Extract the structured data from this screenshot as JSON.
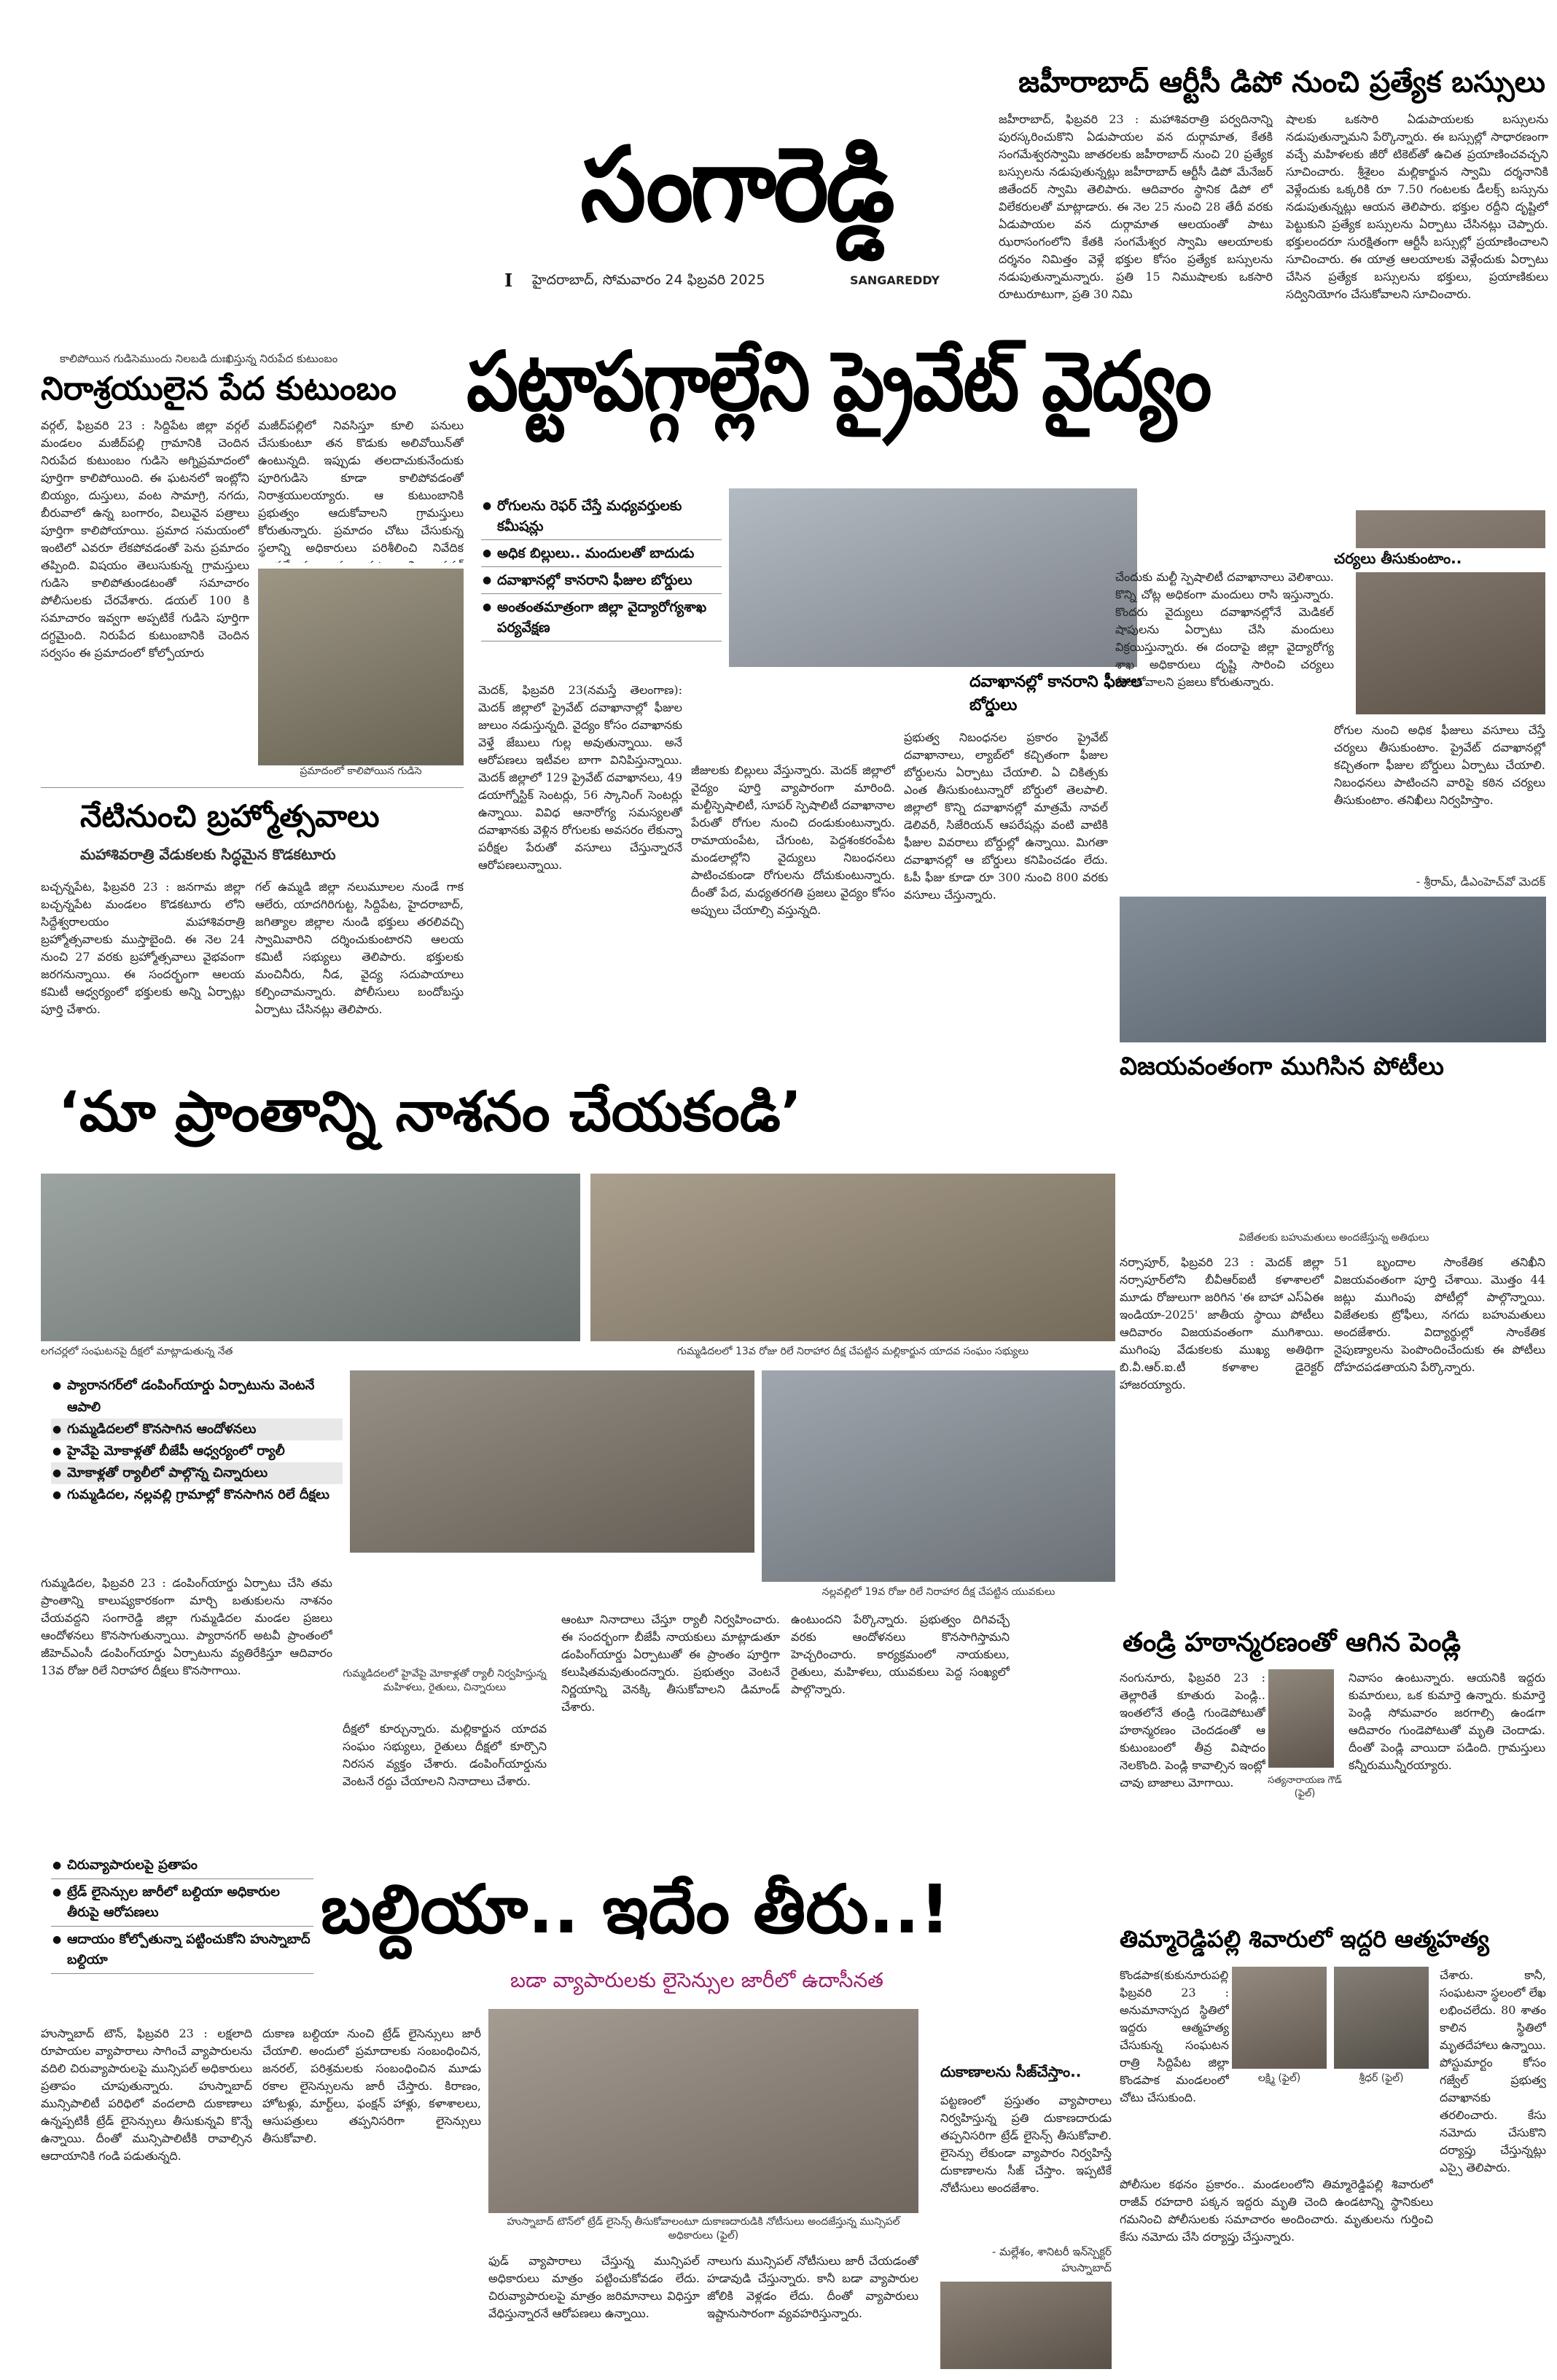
{
  "masthead": {
    "city_name": "సంగారెడ్డి",
    "page_marker": "I",
    "dateline": "హైదరాబాద్, సోమవారం 24 ఫిబ్రవరి 2025",
    "city_english": "SANGAREDDY"
  },
  "story_buses": {
    "headline": "జహీరాబాద్ ఆర్టీసీ డిపో నుంచి ప్రత్యేక బస్సులు",
    "col1": "జహీరాబాద్, ఫిబ్రవరి 23 : మహాశివరాత్రి పర్వదినాన్ని పురస్కరించుకొని ఏడుపాయల వన దుర్గామాత, కేతకి సంగమేశ్వరస్వామి జాతరలకు జహీరాబాద్ నుంచి 20 ప్రత్యేక బస్సులను నడుపుతున్నట్లు జహీరాబాద్ ఆర్టీసీ డిపో మేనేజర్ జితేందర్ స్వామి తెలిపారు. ఆదివారం స్థానిక డిపో లో విలేకరులతో మాట్లాడారు. ఈ నెల 25 నుంచి 28 తేదీ వరకు ఏడుపాయల వన దుర్గామాత ఆలయంతో పాటు ఝరాసంగంలోని కేతకి సంగమేశ్వర స్వామి ఆలయాలకు దర్శనం నిమిత్తం వెళ్లే భక్తుల కోసం ప్రత్యేక బస్సులను నడుపుతున్నామన్నారు. ప్రతి 15 నిముషాలకు ఒకసారి రూటురూటుగా, ప్రతి 30 నిమి",
    "col2": "షాలకు ఒకసారి ఏడుపాయలకు బస్సులను నడుపుతున్నామని పేర్కొన్నారు. ఈ బస్సుల్లో సాధారణంగా వచ్చే మహిళలకు జీరో టికెట్‌తో ఉచిత ప్రయాణించవచ్చని సూచించారు. శ్రీశైలం మల్లికార్జున స్వామి దర్శనానికి వెళ్లేందుకు ఒక్కరికి రూ 7.50 గంటలకు డీలక్స్ బస్సును నడుపుతున్నట్లు ఆయన తెలిపారు. భక్తుల రద్దీని దృష్టిలో పెట్టుకుని ప్రత్యేక బస్సులను ఏర్పాటు చేసినట్లు చెప్పారు. భక్తులందరూ సురక్షితంగా ఆర్టీసీ బస్సుల్లో ప్రయాణించాలని సూచించారు. ఈ యాత్ర ఆలయాలకు వెళ్లేందుకు ఏర్పాటు చేసిన ప్రత్యేక బస్సులను భక్తులు, ప్రయాణికులు సద్వినియోగం చేసుకోవాలని సూచించారు."
  },
  "story_family": {
    "kicker": "కాలిపోయిన గుడిసెముందు నిలబడి దుఃఖిస్తున్న నిరుపేద కుటుంబం",
    "headline": "నిరాశ్రయులైన పేద కుటుంబం",
    "col1": "వర్గల్, ఫిబ్రవరి 23 : సిద్దిపేట జిల్లా వర్గల్ మండలం మజీద్‌పల్లి గ్రామానికి చెందిన నిరుపేద కుటుంబం గుడిసె అగ్నిప్రమాదంలో పూర్తిగా కాలిపోయింది. ఈ ఘటనలో ఇంట్లోని బియ్యం, దుస్తులు, వంట సామాగ్రి, నగదు, బీరువాలో ఉన్న బంగారం, విలువైన పత్రాలు పూర్తిగా కాలిపోయాయి. ప్రమాద సమయంలో ఇంటిలో ఎవరూ లేకపోవడంతో పెను ప్రమాదం తప్పింది. విషయం తెలుసుకున్న గ్రామస్తులు గుడిసె కాలిపోతుండటంతో సమాచారం పోలీసులకు చేరవేశారు. డయల్ 100 కి సమాచారం ఇవ్వగా అప్పటికే గుడిసె పూర్తిగా దగ్ధమైంది. నిరుపేద కుటుంబానికి చెందిన సర్వసం ఈ ప్రమాదంలో కోల్పోయారు",
    "col2": "మజీద్‌పల్లిలో నివసిస్తూ కూలి పనులు చేసుకుంటూ తన కొడుకు అలివోయిన్‌తో ఉంటున్నది. ఇప్పుడు తలదాచుకునేందుకు పూరిగుడిసె కూడా కాలిపోవడంతో నిరాశ్రయులయ్యారు. ఆ కుటుంబానికి ప్రభుత్వం ఆదుకోవాలని గ్రామస్తులు కోరుతున్నారు. ప్రమాదం చోటు చేసుకున్న స్థలాన్ని అధికారులు పరిశీలించి నివేదిక అందజేశారు. ఈ కుటుంబాన్ని వర్గల్ తహసీల్దార్ బాలరాజ్ పరామర్శించారు. ప్రభుత్వపరంగా సహాయం అందేలా చూస్తామని హామీ ఇచ్చారు.",
    "photo_caption": "ప్రమాదంలో కాలిపోయిన గుడిసె"
  },
  "story_festival": {
    "headline": "నేటినుంచి బ్రహ్మోత్సవాలు",
    "subhead": "మహాశివరాత్రి వేడుకలకు సిద్ధమైన కొడకటూరు",
    "col1": "బచ్చన్నపేట, ఫిబ్రవరి 23 : జనగామ జిల్లా బచ్చన్నపేట మండలం కొడకటూరు లోని సిద్దేశ్వరాలయం మహాశివరాత్రి బ్రహ్మోత్సవాలకు ముస్తాబైంది. ఈ నెల 24 నుంచి 27 వరకు బ్రహ్మోత్సవాలు వైభవంగా జరగనున్నాయి. ఈ సందర్భంగా ఆలయ కమిటీ ఆధ్వర్యంలో భక్తులకు అన్ని ఏర్పాట్లు పూర్తి చేశారు.",
    "col2": "గల్ ఉమ్మడి జిల్లా నలుమూలల నుండే గాక ఆలేరు, యాదగిరిగుట్ట, సిద్దిపేట, హైదరాబాద్, జగిత్యాల జిల్లాల నుండి భక్తులు తరలివచ్చి స్వామివారిని దర్శించుకుంటారని ఆలయ కమిటీ సభ్యులు తెలిపారు. భక్తులకు మంచినీరు, నీడ, వైద్య సదుపాయాలు కల్పించామన్నారు. పోలీసులు బందోబస్తు ఏర్పాటు చేసినట్లు తెలిపారు."
  },
  "story_medical": {
    "headline": "పట్టాపగ్గాల్లేని ప్రైవేట్ వైద్యం",
    "bullets": [
      "రోగులను రెఫర్ చేస్తే మధ్యవర్తులకు కమీషన్లు",
      "అధిక బిల్లులు.. మందులతో బాదుడు",
      "దవాఖానల్లో కానరాని ఫీజుల బోర్డులు",
      "అంతంతమాత్రంగా జిల్లా వైద్యారోగ్యశాఖ పర్యవేక్షణ"
    ],
    "inset_title": "దవాఖానల్లో కానరాని ఫీజుల బోర్డులు",
    "col1": "మెదక్, ఫిబ్రవరి 23(నమస్తే తెలంగాణ): మెదక్ జిల్లాలో ప్రైవేట్ దవాఖానాల్లో ఫీజుల జులుం నడుస్తున్నది. వైద్యం కోసం దవాఖానకు వెళ్తే జేబులు గుల్ల అవుతున్నాయి. అనే ఆరోపణలు ఇటీవల బాగా వినిపిస్తున్నాయి. మెదక్ జిల్లాలో 129 ప్రైవేట్ దవాఖానలు, 49 డయాగ్నోస్టిక్ సెంటర్లు, 56 స్కానింగ్ సెంటర్లు ఉన్నాయి. వివిధ ఆనారోగ్య సమస్యలతో దవాఖానకు వెళ్లిన రోగులకు అవసరం లేకున్నా పరీక్షల పేరుతో వసూలు చేస్తున్నారనే ఆరోపణలున్నాయి.",
    "col2": "జీజులకు బిల్లులు వేస్తున్నారు. మెదక్ జిల్లాలో వైద్యం పూర్తి వ్యాపారంగా మారింది. మల్టీస్పెషాలిటీ, సూపర్ స్పెషాలిటీ దవాఖానాల పేరుతో రోగుల నుంచి దండుకుంటున్నారు. రామాయంపేట, చేగుంట, పెద్దశంకరంపేట మండలాల్లోని వైద్యులు నిబంధనలు పాటించకుండా రోగులను దోచుకుంటున్నారు. దీంతో పేద, మధ్యతరగతి ప్రజలు వైద్యం కోసం అప్పులు చేయాల్సి వస్తున్నది.",
    "col3": "ప్రభుత్వ నిబంధనల ప్రకారం ప్రైవేట్ దవాఖానాలు, ల్యాబ్‌లో కచ్చితంగా ఫీజుల బోర్డులను ఏర్పాటు చేయాలి. ఏ చికిత్సకు ఎంత తీసుకుంటున్నారో బోర్డులో తెలపాలి. జిల్లాలో కొన్ని దవాఖానల్లో మాత్రమే నావల్ డెలివరీ, సిజేరియన్ ఆపరేషన్లు వంటి వాటికి ఫీజుల వివరాలు బోర్డుల్లో ఉన్నాయి. మిగతా దవాఖానల్లో ఆ బోర్డులు కనిపించడం లేదు. ఓపీ ఫీజు కూడా రూ 300 నుంచి 800 వరకు వసూలు చేస్తున్నారు.",
    "col4": "చేందుకు మల్టీ స్పెషాలిటీ దవాఖానాలు వెలిశాయి. కొన్ని చోట్ల అధికంగా మందులు రాసి ఇస్తున్నారు. కొందరు వైద్యులు దవాఖానల్లోనే మెడికల్ షాపులను ఏర్పాటు చేసి మందులు విక్రయిస్తున్నారు. ఈ దందాపై జిల్లా వైద్యారోగ్య శాఖ అధికారులు దృష్టి సారించి చర్యలు తీసుకోవాలని ప్రజలు కోరుతున్నారు.",
    "side_kicker": "చర్యలు తీసుకుంటాం..",
    "side_text": "రోగుల నుంచి అధిక ఫీజులు వసూలు చేస్తే చర్యలు తీసుకుంటాం. ప్రైవేట్ దవాఖానల్లో కచ్చితంగా ఫీజుల బోర్డులు ఏర్పాటు చేయాలి. నిబంధనలు పాటించని వారిపై కఠిన చర్యలు తీసుకుంటాం. తనిఖీలు నిర్వహిస్తాం.",
    "side_sig": "- శ్రీరామ్, డీఎంహెచ్‌వో మెదక్"
  },
  "story_region": {
    "headline": "‘మా ప్రాంతాన్ని నాశనం చేయకండి’",
    "photo_caption_1": "లగచర్లలో సంఘటనపై దీక్షలో మాట్లాడుతున్న నేత",
    "photo_caption_2": "గుమ్మడిదలలో 13వ రోజు రిలే నిరాహార దీక్ష చేపట్టిన మల్లికార్జున యాదవ సంఘం సభ్యులు",
    "bullets": [
      "ప్యారానగర్‌లో డంపింగ్‌యార్డు ఏర్పాటును వెంటనే ఆపాలి",
      "గుమ్మడిదలలో కొనసాగిన ఆందోళనలు",
      "హైవేపై మోకాళ్లతో బీజేపీ ఆధ్వర్యంలో ర్యాలీ",
      "మోకాళ్లతో ర్యాలీలో పాల్గొన్న చిన్నారులు",
      "గుమ్మడిదల, నల్లవల్లి గ్రామాల్లో కొనసాగిన రిలే దీక్షలు"
    ],
    "col1": "గుమ్మడిదల, ఫిబ్రవరి 23 : డంపింగ్‌యార్డు ఏర్పాటు చేసి తమ ప్రాంతాన్ని కాలుష్యకారకంగా మార్చి బతుకులను నాశనం చేయవద్దని సంగారెడ్డి జిల్లా గుమ్మడిదల మండల ప్రజలు ఆందోళనలు కొనసాగుతున్నాయి. ప్యారానగర్ అటవీ ప్రాంతంలో జీహెచ్ఎంసీ డంపింగ్‌యార్డు ఏర్పాటును వ్యతిరేకిస్తూ ఆదివారం 13వ రోజు రిలే నిరాహార దీక్షలు కొనసాగాయి.",
    "photo_caption_3": "గుమ్మడిదలలో హైవేపై మోకాళ్లతో ర్యాలీ నిర్వహిస్తున్న మహిళలు, రైతులు, చిన్నారులు",
    "col2": "దీక్షలో కూర్చున్నారు. మల్లికార్జున యాదవ సంఘం సభ్యులు, రైతులు దీక్షలో కూర్చొని నిరసన వ్యక్తం చేశారు. డంపింగ్‌యార్డును వెంటనే రద్దు చేయాలని నినాదాలు చేశారు.",
    "photo_caption_4": "నల్లవల్లిలో 19వ రోజు రిలే నిరాహార దీక్ష చేపట్టిన యువకులు",
    "col3": "ఆంటూ నినాదాలు చేస్తూ ర్యాలీ నిర్వహించారు. ఈ సందర్భంగా బీజేపీ నాయకులు మాట్లాడుతూ డంపింగ్‌యార్డు ఏర్పాటుతో ఈ ప్రాంతం పూర్తిగా కలుషితమవుతుందన్నారు. ప్రభుత్వం వెంటనే నిర్ణయాన్ని వెనక్కి తీసుకోవాలని డిమాండ్ చేశారు.",
    "col4": "ఉంటుందని పేర్కొన్నారు. ప్రభుత్వం దిగివచ్చే వరకు ఆందోళనలు కొనసాగిస్తామని హెచ్చరించారు. కార్యక్రమంలో నాయకులు, రైతులు, మహిళలు, యువకులు పెద్ద సంఖ్యలో పాల్గొన్నారు."
  },
  "story_sports": {
    "headline": "విజయవంతంగా ముగిసిన పోటీలు",
    "photo_caption": "విజేతలకు బహుమతులు అందజేస్తున్న అతిథులు",
    "col1": "నర్సాపూర్, ఫిబ్రవరి 23 : మెదక్ జిల్లా నర్సాపూర్‌లోని బీవీఆర్‌ఐటీ కళాశాలలో మూడు రోజులుగా జరిగిన 'ఈ బాహా ఎస్ఏఈ ఇండియా-2025' జాతీయ స్థాయి పోటీలు ఆదివారం విజయవంతంగా ముగిశాయి. ముగింపు వేడుకలకు ముఖ్య అతిథిగా బి.వీ.ఆర్.ఐ.టీ కళాశాల డైరెక్టర్ హాజరయ్యారు.",
    "col2": "51 బృందాల సాంకేతిక తనిఖీని విజయవంతంగా పూర్తి చేశాయి. మొత్తం 44 జట్లు ముగింపు పోటీల్లో పాల్గొన్నాయి. విజేతలకు ట్రోఫీలు, నగదు బహుమతులు అందజేశారు. విద్యార్థుల్లో సాంకేతిక నైపుణ్యాలను పెంపొందించేందుకు ఈ పోటీలు దోహదపడతాయని పేర్కొన్నారు."
  },
  "story_wedding": {
    "headline": "తండ్రి హఠాన్మరణంతో ఆగిన పెండ్లి",
    "col1": "నంగునూరు, ఫిబ్రవరి 23 : తెల్లారితే కూతురు పెండ్లి.. ఇంతలోనే తండ్రి గుండెపోటుతో హఠాన్మరణం చెందడంతో ఆ కుటుంబంలో తీవ్ర విషాదం నెలకొంది. పెండ్లి కావాల్సిన ఇంట్లో చావు బాజాలు మోగాయి.",
    "photo_caption": "సత్యనారాయణ గౌడ్ (ఫైల్)",
    "col2": "నివాసం ఉంటున్నారు. ఆయనికి ఇద్దరు కుమారులు, ఒక కుమార్తె ఉన్నారు. కుమార్తె పెండ్లి సోమవారం జరగాల్సి ఉండగా ఆదివారం గుండెపోటుతో మృతి చెందాడు. దీంతో పెండ్లి వాయిదా పడింది. గ్రామస్తులు కన్నీరుమున్నీరయ్యారు."
  },
  "story_suicide": {
    "headline": "తిమ్మారెడ్డిపల్లి శివారులో ఇద్దరి ఆత్మహత్య",
    "col1": "కొండపాక(కుకునూరుపల్లి), ఫిబ్రవరి 23 : అనుమానాస్పద స్థితిలో ఇద్దరు ఆత్మహత్య చేసుకున్న సంఘటన రాత్రి సిద్దిపేట జిల్లా కొండపాక మండలంలో చోటు చేసుకుంది.",
    "photo1_caption": "లక్ష్మి (ఫైల్)",
    "photo2_caption": "శ్రీధర్ (ఫైల్)",
    "col2": "పోలీసుల కథనం ప్రకారం.. మండలంలోని తిమ్మారెడ్డిపల్లి శివారులో రాజీవ్ రహదారి పక్కన ఇద్దరు మృతి చెంది ఉండటాన్ని స్థానికులు గమనించి పోలీసులకు సమాచారం అందించారు. మృతులను గుర్తించి కేసు నమోదు చేసి దర్యాప్తు చేస్తున్నారు.",
    "col3": "చేశారు. కానీ, సంఘటనా స్థలంలో లేఖ లభించలేదు. 80 శాతం కాలిన స్థితిలో మృతదేహాలు ఉన్నాయి. పోస్టుమార్టం కోసం గజ్వేల్ ప్రభుత్వ దవాఖానకు తరలించారు. కేసు నమోదు చేసుకొని దర్యాప్తు చేస్తున్నట్లు ఎస్సై తెలిపారు."
  },
  "story_business": {
    "bullets": [
      "చిరువ్యాపారులపై ప్రతాపం",
      "ట్రేడ్ లైసెన్సుల జారీలో బల్దియా అధికారుల తీరుపై ఆరోపణలు",
      "ఆదాయం కోల్పోతున్నా పట్టించుకోని హుస్నాబాద్ బల్దియా"
    ],
    "headline": "బల్దియా.. ఇదేం తీరు..!",
    "subhead": "బడా వ్యాపారులకు లైసెన్సుల జారీలో ఉదాసీనత",
    "col1": "హుస్నాబాద్ టౌన్, ఫిబ్రవరి 23 : లక్షలాది రూపాయల వ్యాపారాలు సాగించే వ్యాపారులను వదిలి చిరువ్యాపారులపై మున్సిపల్ అధికారులు ప్రతాపం చూపుతున్నారు. హుస్నాబాద్ మున్సిపాలిటీ పరిధిలో వందలాది దుకాణాలు ఉన్నప్పటికీ ట్రేడ్ లైసెన్సులు తీసుకున్నవి కొన్నే ఉన్నాయి. దీంతో మున్సిపాలిటీకి రావాల్సిన ఆదాయానికి గండి పడుతున్నది.",
    "col2": "దుకాణ బల్దియా నుంచి ట్రేడ్ లైసెన్సులు జారీ చేయాలి. అందులో ప్రమాదాలకు సంబంధించిన, జనరల్, పరిశ్రమలకు సంబంధించిన మూడు రకాల లైసెన్సులను జారీ చేస్తారు. కిరాణం, హోటళ్లు, మార్ట్‌లు, ఫంక్షన్ హాళ్లు, కళాశాలలు, ఆసుపత్రులు తప్పనిసరిగా లైసెన్సులు తీసుకోవాలి.",
    "photo_caption": "హుస్నాబాద్ టౌన్‌లో ట్రేడ్ లైసెన్స్ తీసుకోవాలంటూ దుకాణదారుడికి నోటీసులు అందజేస్తున్న మున్సిపల్ అధికారులు (ఫైల్)",
    "col3": "ఫుడ్ వ్యాపారాలు చేస్తున్న మున్సిపల్ అధికారులు మాత్రం పట్టించుకోవడం లేదు. చిరువ్యాపారులపై మాత్రం జరిమానాలు విధిస్తూ వేధిస్తున్నారనే ఆరోపణలు ఉన్నాయి.",
    "col4": "నాలుగు మున్సిపల్ నోటీసులు జారీ చేయడంతో హడావుడి చేస్తున్నారు. కానీ బడా వ్యాపారుల జోలికి వెళ్లడం లేదు. దీంతో వ్యాపారులు ఇష్టానుసారంగా వ్యవహరిస్తున్నారు.",
    "side_kicker": "దుకాణాలను సీజ్‌చేస్తాం..",
    "side_text": "పట్టణంలో ప్రస్తుతం వ్యాపారాలు నిర్వహిస్తున్న ప్రతి దుకాణదారుడు తప్పనిసరిగా ట్రేడ్ లైసెన్స్ తీసుకోవాలి. లైసెన్సు లేకుండా వ్యాపారం నిర్వహిస్తే దుకాణాలను సీజ్ చేస్తాం. ఇప్పటికే నోటీసులు అందజేశాం.",
    "side_sig": "- మల్లేశం, శానిటరీ ఇన్‌స్పెక్టర్ హుస్నాబాద్"
  }
}
